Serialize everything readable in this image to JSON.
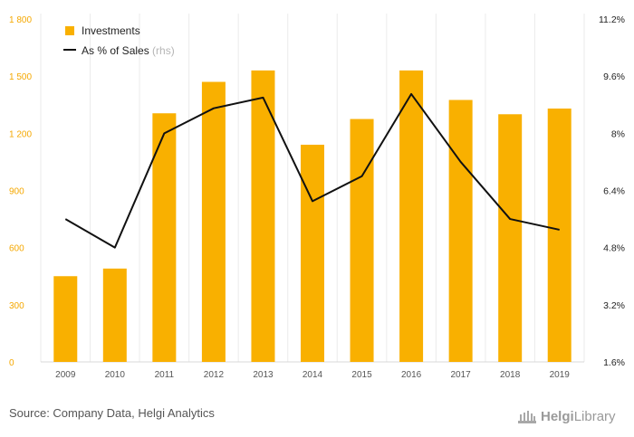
{
  "chart_data": {
    "type": "bar+line",
    "categories": [
      "2009",
      "2010",
      "2011",
      "2012",
      "2013",
      "2014",
      "2015",
      "2016",
      "2017",
      "2018",
      "2019"
    ],
    "series": [
      {
        "name": "Investments",
        "kind": "bar",
        "axis": "left",
        "color": "#f9b000",
        "values": [
          450,
          490,
          1305,
          1470,
          1530,
          1140,
          1275,
          1530,
          1375,
          1300,
          1330
        ]
      },
      {
        "name": "As % of Sales",
        "name_suffix": "(rhs)",
        "kind": "line",
        "axis": "right",
        "color": "#111111",
        "values": [
          5.6,
          4.8,
          8.0,
          8.7,
          9.0,
          6.1,
          6.8,
          9.1,
          7.2,
          5.6,
          5.3
        ]
      }
    ],
    "y_left": {
      "ylim": [
        0,
        1800
      ],
      "ticks": [
        0,
        300,
        600,
        900,
        1200,
        1500,
        1800
      ],
      "tick_labels": [
        "0",
        "300",
        "600",
        "900",
        "1 200",
        "1 500",
        "1 800"
      ]
    },
    "y_right": {
      "ylim": [
        1.6,
        11.2
      ],
      "ticks": [
        1.6,
        3.2,
        4.8,
        6.4,
        8.0,
        9.6,
        11.2
      ],
      "tick_labels": [
        "1.6%",
        "3.2%",
        "4.8%",
        "6.4%",
        "8%",
        "9.6%",
        "11.2%"
      ]
    },
    "legend_placement": "top-left",
    "grid": "vertical"
  },
  "footer": {
    "source": "Source: Company Data, Helgi Analytics"
  },
  "logo": {
    "text_bold": "Helgi",
    "text_regular": "Library"
  }
}
